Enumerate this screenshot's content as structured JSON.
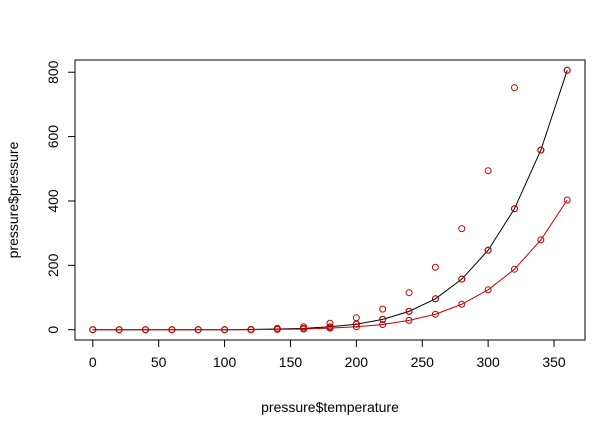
{
  "chart_data": {
    "type": "scatter",
    "title": "",
    "xlabel": "pressure$temperature",
    "ylabel": "pressure$pressure",
    "xlim": [
      -13.5,
      373.5
    ],
    "ylim": [
      -32,
      838
    ],
    "xticks": [
      0,
      50,
      100,
      150,
      200,
      250,
      300,
      350
    ],
    "yticks": [
      0,
      200,
      400,
      600,
      800
    ],
    "grid": false,
    "series": [
      {
        "color": "#000000",
        "mark": "circle",
        "points": [
          [
            0,
            0.0002
          ],
          [
            20,
            0.0012
          ],
          [
            40,
            0.006
          ],
          [
            60,
            0.03
          ],
          [
            80,
            0.09
          ],
          [
            100,
            0.27
          ],
          [
            120,
            0.75
          ],
          [
            140,
            1.85
          ],
          [
            160,
            4.2
          ],
          [
            180,
            8.8
          ],
          [
            200,
            17.3
          ],
          [
            220,
            32.1
          ],
          [
            240,
            57
          ],
          [
            260,
            96
          ],
          [
            280,
            157
          ],
          [
            300,
            247
          ],
          [
            320,
            376
          ],
          [
            340,
            558
          ],
          [
            360,
            806
          ]
        ]
      },
      {
        "color": "#cc0000",
        "mark": "circle",
        "points": [
          [
            120,
            0.75
          ],
          [
            140,
            1.85
          ],
          [
            160,
            4.2
          ],
          [
            180,
            8.8
          ],
          [
            200,
            17.3
          ],
          [
            220,
            32.1
          ],
          [
            240,
            57
          ],
          [
            260,
            96
          ],
          [
            280,
            157
          ],
          [
            300,
            247
          ],
          [
            320,
            376
          ],
          [
            340,
            558
          ],
          [
            360,
            806
          ]
        ]
      },
      {
        "color": "#cc0000",
        "mark": "circle",
        "points": [
          [
            0,
            0
          ],
          [
            20,
            0
          ],
          [
            40,
            0
          ],
          [
            60,
            0
          ],
          [
            80,
            0
          ],
          [
            100,
            0
          ],
          [
            120,
            0
          ],
          [
            140,
            4
          ],
          [
            160,
            9
          ],
          [
            180,
            20
          ],
          [
            200,
            37
          ],
          [
            220,
            64
          ],
          [
            240,
            115
          ],
          [
            260,
            194
          ],
          [
            280,
            314
          ],
          [
            300,
            494
          ],
          [
            320,
            752
          ]
        ]
      },
      {
        "color": "#cc0000",
        "mark": "circle",
        "points": [
          [
            0,
            0
          ],
          [
            20,
            0
          ],
          [
            40,
            0
          ],
          [
            60,
            0
          ],
          [
            80,
            0
          ],
          [
            100,
            0
          ],
          [
            120,
            0
          ],
          [
            140,
            1
          ],
          [
            160,
            2
          ],
          [
            180,
            5
          ],
          [
            200,
            9
          ],
          [
            220,
            16
          ],
          [
            240,
            29
          ],
          [
            260,
            48
          ],
          [
            280,
            79
          ],
          [
            300,
            124
          ],
          [
            320,
            188
          ],
          [
            340,
            279
          ],
          [
            360,
            403
          ]
        ]
      }
    ],
    "curves": [
      {
        "color": "#000000",
        "x": [
          0,
          20,
          40,
          60,
          80,
          100,
          120,
          140,
          160,
          180,
          200,
          220,
          240,
          260,
          280,
          300,
          320,
          340,
          360
        ],
        "y": [
          0,
          0,
          0,
          0,
          0,
          0,
          1,
          2,
          4,
          9,
          17,
          32,
          57,
          96,
          157,
          247,
          376,
          558,
          806
        ]
      },
      {
        "color": "#cc0000",
        "x": [
          0,
          20,
          40,
          60,
          80,
          100,
          120,
          140,
          160,
          180,
          200,
          220,
          240,
          260,
          280,
          300,
          320,
          340,
          360
        ],
        "y": [
          0,
          0,
          0,
          0,
          0,
          0,
          0,
          1,
          2,
          5,
          9,
          16,
          29,
          48,
          79,
          124,
          188,
          279,
          403
        ]
      }
    ]
  }
}
